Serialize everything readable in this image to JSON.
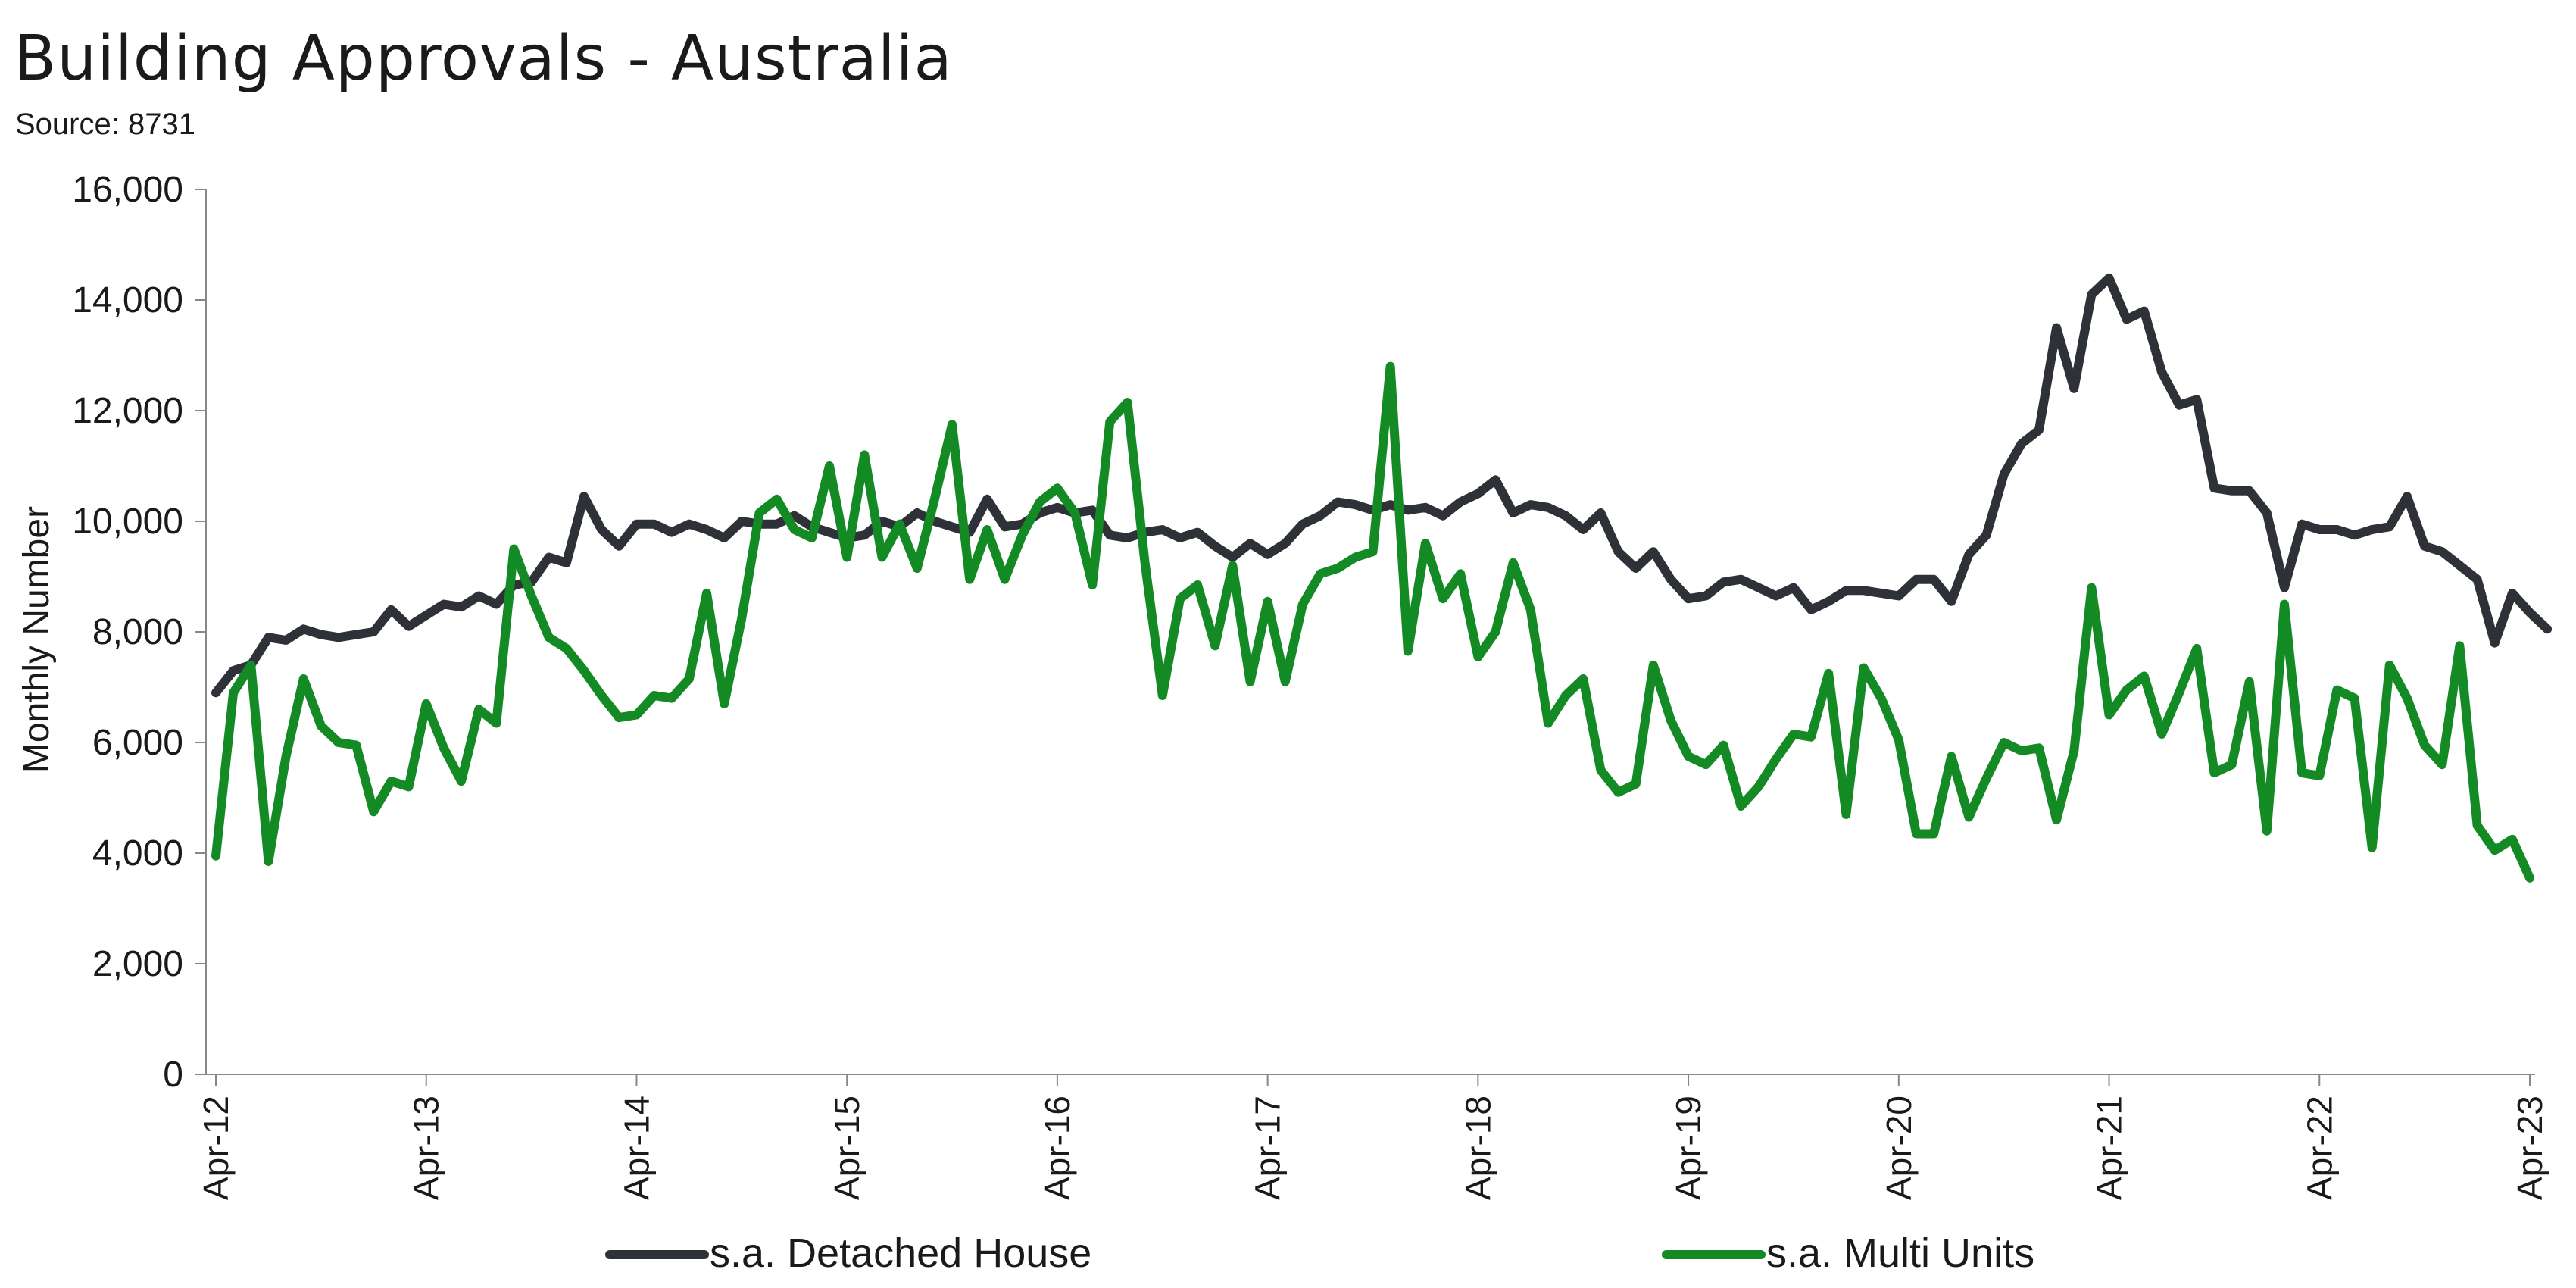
{
  "chart_data": {
    "type": "line",
    "title": "Building Approvals - Australia",
    "subtitle": "Source: 8731",
    "ylabel": "Monthly Number",
    "xlabel": "",
    "ylim": [
      0,
      16000
    ],
    "yticks": [
      0,
      2000,
      4000,
      6000,
      8000,
      10000,
      12000,
      14000,
      16000
    ],
    "ytick_labels": [
      "0",
      "2,000",
      "4,000",
      "6,000",
      "8,000",
      "10,000",
      "12,000",
      "14,000",
      "16,000"
    ],
    "x_start": "Apr-12",
    "x_end": "Apr-23",
    "xtick_labels": [
      "Apr-12",
      "Apr-13",
      "Apr-14",
      "Apr-15",
      "Apr-16",
      "Apr-17",
      "Apr-18",
      "Apr-19",
      "Apr-20",
      "Apr-21",
      "Apr-22",
      "Apr-23"
    ],
    "legend_position": "bottom",
    "grid": false,
    "series": [
      {
        "name": "s.a. Detached House",
        "color": "#2e3238",
        "values": [
          6900,
          7300,
          7400,
          7900,
          7850,
          8050,
          7950,
          7900,
          7950,
          8000,
          8400,
          8100,
          8300,
          8500,
          8450,
          8650,
          8500,
          8850,
          8900,
          9350,
          9250,
          10450,
          9850,
          9550,
          9950,
          9950,
          9800,
          9950,
          9850,
          9700,
          10000,
          9950,
          9950,
          10100,
          9900,
          9800,
          9700,
          9750,
          10000,
          9900,
          10150,
          10000,
          9900,
          9800,
          10400,
          9900,
          9950,
          10150,
          10250,
          10150,
          10200,
          9750,
          9700,
          9800,
          9850,
          9700,
          9800,
          9550,
          9350,
          9600,
          9400,
          9600,
          9950,
          10100,
          10350,
          10300,
          10200,
          10300,
          10200,
          10250,
          10100,
          10350,
          10500,
          10750,
          10150,
          10300,
          10250,
          10100,
          9850,
          10150,
          9450,
          9150,
          9450,
          8950,
          8600,
          8650,
          8900,
          8950,
          8800,
          8650,
          8800,
          8400,
          8550,
          8750,
          8750,
          8700,
          8650,
          8950,
          8950,
          8550,
          9400,
          9750,
          10850,
          11400,
          11650,
          13500,
          12400,
          14100,
          14400,
          13650,
          13800,
          12700,
          12100,
          12200,
          10600,
          10550,
          10550,
          10150,
          8800,
          9950,
          9850,
          9850,
          9750,
          9850,
          9900,
          10450,
          9550,
          9450,
          9200,
          8950,
          7800,
          8700,
          8350,
          8050
        ]
      },
      {
        "name": "s.a. Multi Units",
        "color": "#138a24",
        "values": [
          3950,
          6900,
          7400,
          3850,
          5750,
          7150,
          6300,
          6000,
          5950,
          4750,
          5300,
          5200,
          6700,
          5900,
          5300,
          6600,
          6350,
          9500,
          8650,
          7900,
          7700,
          7300,
          6850,
          6450,
          6500,
          6850,
          6800,
          7150,
          8700,
          6700,
          8250,
          10150,
          10400,
          9850,
          9700,
          11000,
          9350,
          11200,
          9350,
          9950,
          9150,
          10400,
          11750,
          8950,
          9850,
          8950,
          9750,
          10350,
          10600,
          10150,
          8850,
          11800,
          12150,
          9250,
          6850,
          8600,
          8850,
          7750,
          9200,
          7100,
          8550,
          7100,
          8500,
          9050,
          9150,
          9350,
          9450,
          12800,
          7650,
          9600,
          8600,
          9050,
          7550,
          8000,
          9250,
          8400,
          6350,
          6850,
          7150,
          5500,
          5100,
          5250,
          7400,
          6400,
          5750,
          5600,
          5950,
          4850,
          5200,
          5700,
          6150,
          6100,
          7250,
          4700,
          7350,
          6800,
          6050,
          4350,
          4350,
          5750,
          4650,
          5350,
          6000,
          5850,
          5900,
          4600,
          5850,
          8800,
          6500,
          6950,
          7200,
          6150,
          6900,
          7700,
          5450,
          5600,
          7100,
          4400,
          8500,
          5450,
          5400,
          6950,
          6800,
          4100,
          7400,
          6800,
          5950,
          5600,
          7750,
          4500,
          4050,
          4250,
          3550
        ]
      }
    ]
  }
}
